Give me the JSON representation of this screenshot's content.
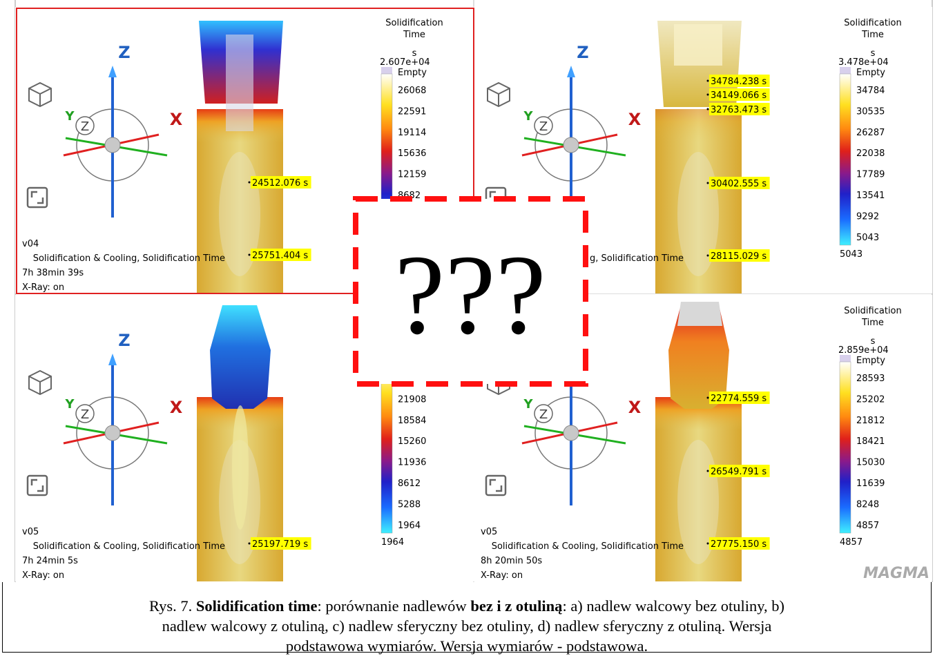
{
  "panels": [
    {
      "legend": {
        "title": [
          "Solidification",
          "Time"
        ],
        "unit": "s",
        "max": "2.607e+04",
        "empty": "Empty",
        "ticks": [
          26068,
          22591,
          19114,
          15636,
          12159,
          8682
        ]
      },
      "probes": [
        "24512.076 s",
        "25751.404 s"
      ],
      "info": [
        "v04",
        "Solidification & Cooling, Solidification Time",
        "7h 38min 39s",
        "X-Ray: on"
      ],
      "gizmo": {
        "z": "Z",
        "x": "X",
        "y": "Y",
        "view": "Z"
      }
    },
    {
      "legend": {
        "title": [
          "Solidification",
          "Time"
        ],
        "unit": "s",
        "max": "3.478e+04",
        "empty": "Empty",
        "ticks": [
          34784,
          30535,
          26287,
          22038,
          17789,
          13541,
          9292,
          5043
        ],
        "min": 5043
      },
      "probes": [
        "34784.238 s",
        "34149.066 s",
        "32763.473 s",
        "30402.555 s",
        "28115.029 s"
      ],
      "info": [
        null,
        "g, Solidification Time",
        null,
        null
      ],
      "gizmo": {
        "z": "Z",
        "x": "X",
        "y": "Y",
        "view": "Z"
      }
    },
    {
      "legend": {
        "ticks": [
          null,
          21908,
          18584,
          15260,
          11936,
          8612,
          5288,
          1964
        ],
        "min": 1964
      },
      "probes": [
        "25197.719 s"
      ],
      "info": [
        "v05",
        "Solidification & Cooling, Solidification Time",
        "7h 24min 5s",
        "X-Ray: on"
      ],
      "gizmo": {
        "z": "Z",
        "x": "X",
        "y": "Y",
        "view": "Z"
      }
    },
    {
      "legend": {
        "title": [
          "Solidification",
          "Time"
        ],
        "unit": "s",
        "max": "2.859e+04",
        "empty": "Empty",
        "ticks": [
          28593,
          25202,
          21812,
          18421,
          15030,
          11639,
          8248,
          4857
        ],
        "min": 4857
      },
      "probes": [
        "22774.559 s",
        "26549.791 s",
        "27775.150 s"
      ],
      "info": [
        "v05",
        "Solidification & Cooling, Solidification Time",
        "8h 20min 50s",
        "X-Ray: on"
      ],
      "gizmo": {
        "x": "X",
        "y": "Y",
        "view": "Z"
      },
      "logo": "MAGMA"
    }
  ],
  "overlay": {
    "text": "???"
  },
  "caption": {
    "lines": [
      [
        {
          "text": "Rys. 7. "
        },
        {
          "text": "Solidification time",
          "bold": true
        },
        {
          "text": ": porównanie nadlewów "
        },
        {
          "text": "bez i z otuliną",
          "bold": true
        },
        {
          "text": ": a) nadlew walcowy bez otuliny, b)"
        }
      ],
      [
        {
          "text": "nadlew walcowy z otuliną, c) nadlew sferyczny bez otuliny, d) nadlew sferyczny z otuliną. Wersja"
        }
      ],
      [
        {
          "text": "podstawowa wymiarów. Wersja wymiarów - podstawowa."
        }
      ]
    ]
  }
}
